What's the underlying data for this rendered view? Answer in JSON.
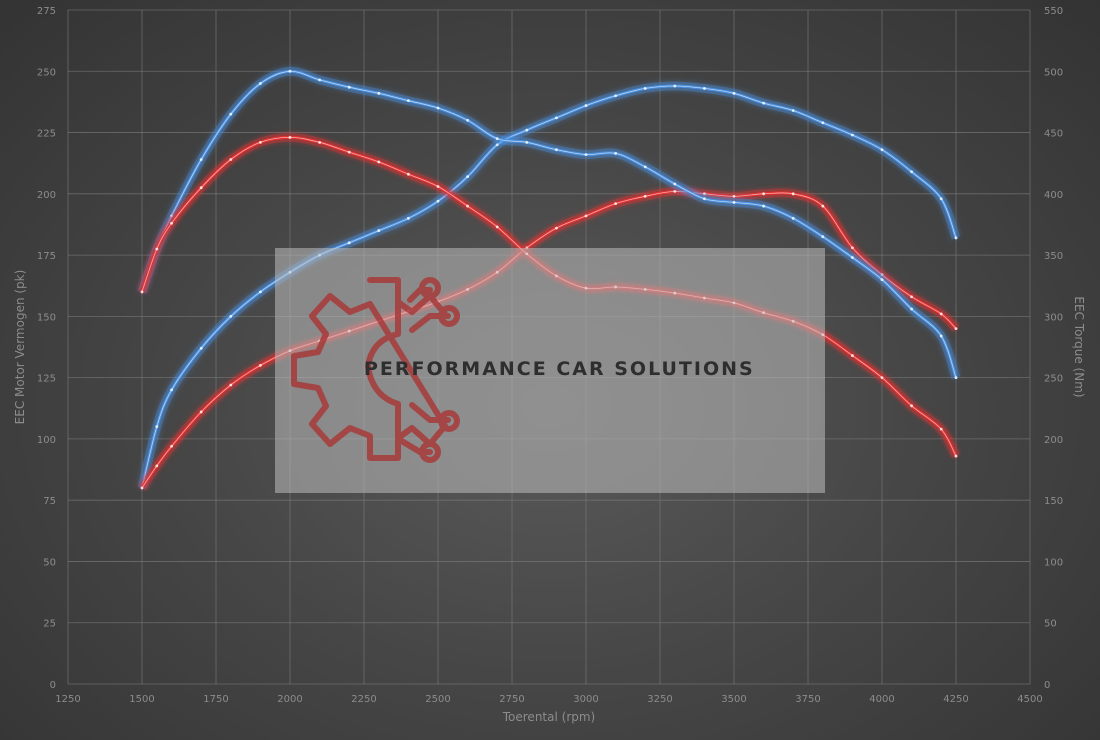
{
  "chart_data": {
    "type": "line",
    "title": "",
    "xlabel": "Toerental (rpm)",
    "ylabel_left": "EEC Motor Vermogen (pk)",
    "ylabel_right": "EEC Torque (Nm)",
    "xlim": [
      1250,
      4500
    ],
    "ylim_left": [
      0,
      275
    ],
    "ylim_right": [
      0,
      550
    ],
    "x_ticks": [
      1250,
      1500,
      1750,
      2000,
      2250,
      2500,
      2750,
      3000,
      3250,
      3500,
      3750,
      4000,
      4250,
      4500
    ],
    "y_ticks_left": [
      0,
      25,
      50,
      75,
      100,
      125,
      150,
      175,
      200,
      225,
      250,
      275
    ],
    "y_ticks_right": [
      0,
      50,
      100,
      150,
      200,
      250,
      300,
      350,
      400,
      450,
      500,
      550
    ],
    "grid": true,
    "series": [
      {
        "color": "#4a90e0",
        "axis": "left",
        "points": [
          [
            1500,
            80
          ],
          [
            1550,
            105
          ],
          [
            1600,
            120
          ],
          [
            1700,
            137
          ],
          [
            1800,
            150
          ],
          [
            1900,
            160
          ],
          [
            2000,
            168
          ],
          [
            2100,
            175
          ],
          [
            2200,
            180
          ],
          [
            2300,
            185
          ],
          [
            2400,
            190
          ],
          [
            2500,
            197
          ],
          [
            2600,
            207
          ],
          [
            2700,
            220
          ],
          [
            2800,
            226
          ],
          [
            2900,
            231
          ],
          [
            3000,
            236
          ],
          [
            3100,
            240
          ],
          [
            3200,
            243
          ],
          [
            3300,
            244
          ],
          [
            3400,
            243
          ],
          [
            3500,
            241
          ],
          [
            3600,
            237
          ],
          [
            3700,
            234
          ],
          [
            3800,
            229
          ],
          [
            3900,
            224
          ],
          [
            4000,
            218
          ],
          [
            4100,
            209
          ],
          [
            4200,
            198
          ],
          [
            4250,
            182
          ]
        ]
      },
      {
        "color": "#e53030",
        "axis": "left",
        "points": [
          [
            1500,
            80
          ],
          [
            1550,
            89
          ],
          [
            1600,
            97
          ],
          [
            1700,
            111
          ],
          [
            1800,
            122
          ],
          [
            1900,
            130
          ],
          [
            2000,
            136
          ],
          [
            2100,
            140
          ],
          [
            2200,
            144
          ],
          [
            2300,
            148
          ],
          [
            2400,
            152
          ],
          [
            2500,
            156
          ],
          [
            2600,
            161
          ],
          [
            2700,
            168
          ],
          [
            2800,
            178
          ],
          [
            2900,
            186
          ],
          [
            3000,
            191
          ],
          [
            3100,
            196
          ],
          [
            3200,
            199
          ],
          [
            3300,
            201
          ],
          [
            3400,
            200
          ],
          [
            3500,
            199
          ],
          [
            3600,
            200
          ],
          [
            3700,
            200
          ],
          [
            3800,
            195
          ],
          [
            3900,
            178
          ],
          [
            4000,
            167
          ],
          [
            4100,
            158
          ],
          [
            4200,
            151
          ],
          [
            4250,
            145
          ]
        ]
      },
      {
        "color": "#4a90e0",
        "axis": "right",
        "points": [
          [
            1500,
            320
          ],
          [
            1550,
            355
          ],
          [
            1600,
            382
          ],
          [
            1700,
            428
          ],
          [
            1800,
            465
          ],
          [
            1900,
            490
          ],
          [
            2000,
            500
          ],
          [
            2100,
            493
          ],
          [
            2200,
            487
          ],
          [
            2300,
            482
          ],
          [
            2400,
            476
          ],
          [
            2500,
            470
          ],
          [
            2600,
            460
          ],
          [
            2700,
            445
          ],
          [
            2800,
            442
          ],
          [
            2900,
            436
          ],
          [
            3000,
            432
          ],
          [
            3100,
            433
          ],
          [
            3200,
            422
          ],
          [
            3300,
            408
          ],
          [
            3400,
            396
          ],
          [
            3500,
            393
          ],
          [
            3600,
            390
          ],
          [
            3700,
            380
          ],
          [
            3800,
            365
          ],
          [
            3900,
            348
          ],
          [
            4000,
            330
          ],
          [
            4100,
            306
          ],
          [
            4200,
            284
          ],
          [
            4250,
            250
          ]
        ]
      },
      {
        "color": "#e53030",
        "axis": "right",
        "points": [
          [
            1500,
            320
          ],
          [
            1550,
            355
          ],
          [
            1600,
            376
          ],
          [
            1700,
            405
          ],
          [
            1800,
            428
          ],
          [
            1900,
            442
          ],
          [
            2000,
            446
          ],
          [
            2100,
            442
          ],
          [
            2200,
            434
          ],
          [
            2300,
            426
          ],
          [
            2400,
            416
          ],
          [
            2500,
            406
          ],
          [
            2600,
            390
          ],
          [
            2700,
            373
          ],
          [
            2800,
            351
          ],
          [
            2900,
            333
          ],
          [
            3000,
            323
          ],
          [
            3100,
            324
          ],
          [
            3200,
            322
          ],
          [
            3300,
            319
          ],
          [
            3400,
            315
          ],
          [
            3500,
            311
          ],
          [
            3600,
            303
          ],
          [
            3700,
            296
          ],
          [
            3800,
            285
          ],
          [
            3900,
            268
          ],
          [
            4000,
            250
          ],
          [
            4100,
            227
          ],
          [
            4200,
            208
          ],
          [
            4250,
            186
          ]
        ]
      }
    ]
  },
  "watermark": {
    "text": "PERFORMANCE CAR SOLUTIONS",
    "logo_icon": "gear-circuit-icon",
    "logo_color": "#a83a3a",
    "text_color": "#2e2e2e"
  }
}
